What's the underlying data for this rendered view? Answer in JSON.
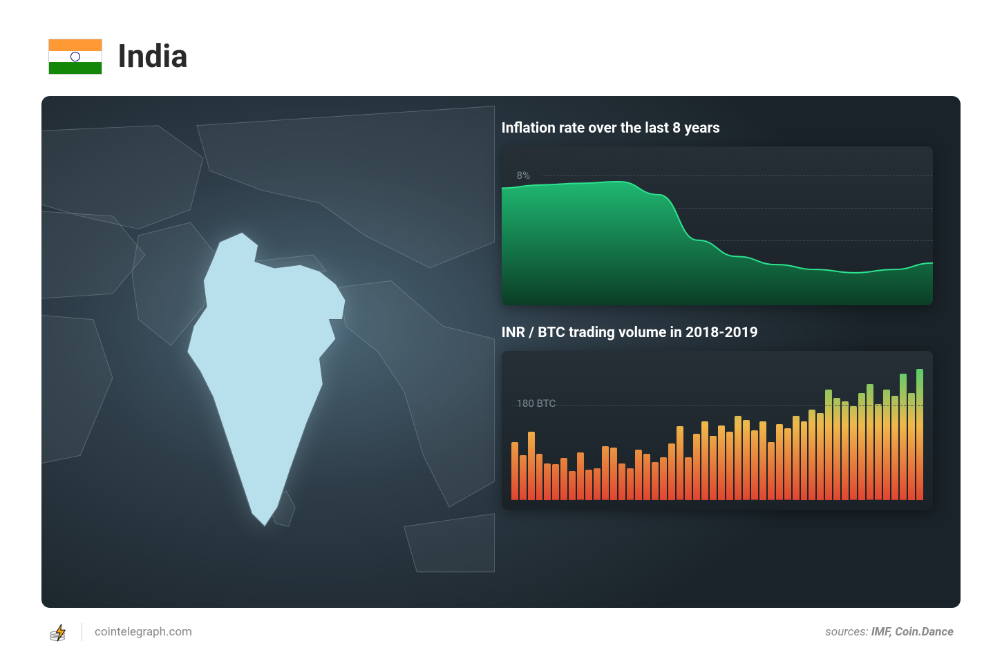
{
  "header": {
    "country": "India",
    "flag": {
      "stripes": [
        "#ff9933",
        "#ffffff",
        "#138808"
      ],
      "chakra_color": "#000080"
    }
  },
  "panel": {
    "background_gradient": [
      "#4a6575",
      "#2e3d48",
      "#1a2329"
    ],
    "border_radius": 12
  },
  "inflation_chart": {
    "title": "Inflation rate over the last 8 years",
    "type": "area",
    "background": [
      "#262f36",
      "#1a2228"
    ],
    "grid_color": "#3d4a54",
    "label_color": "#7a8b95",
    "label_fontsize": 15,
    "y_ticks": [
      2,
      4,
      6,
      8
    ],
    "y_tick_format": "%",
    "ylim": [
      0,
      9
    ],
    "x_count": 8,
    "values": [
      7.2,
      7.4,
      7.5,
      7.6,
      6.8,
      4.0,
      3.0,
      2.5,
      2.2,
      2.0,
      2.2,
      2.6
    ],
    "fill_gradient_top": "#1fb871",
    "fill_gradient_bottom": "#0b3d26",
    "stroke_color": "#2de38f",
    "stroke_width": 2
  },
  "volume_chart": {
    "title": "INR / BTC trading volume in 2018-2019",
    "type": "bar",
    "background": [
      "#262f36",
      "#1a2228"
    ],
    "grid_color": "#3d4a54",
    "label_color": "#7a8b95",
    "label_fontsize": 15,
    "reference_label": "180 BTC",
    "reference_value": 180,
    "ylim": [
      0,
      260
    ],
    "bar_gradient_top": "#4bcf70",
    "bar_gradient_mid": "#f0b84a",
    "bar_gradient_bottom": "#e0452f",
    "values": [
      110,
      85,
      130,
      88,
      70,
      68,
      80,
      55,
      90,
      58,
      60,
      102,
      100,
      70,
      60,
      96,
      88,
      72,
      82,
      108,
      140,
      82,
      126,
      150,
      122,
      142,
      130,
      160,
      152,
      132,
      150,
      110,
      144,
      136,
      160,
      150,
      172,
      166,
      210,
      195,
      188,
      178,
      204,
      220,
      182,
      210,
      198,
      240,
      204,
      250
    ]
  },
  "footer": {
    "site": "cointelegraph.com",
    "sources_prefix": "sources:",
    "sources": "IMF, Coin.Dance",
    "logo_colors": {
      "ring": "#888888",
      "bolt": "#f7a81b"
    }
  },
  "map": {
    "highlight_fill": "#b8e0ec",
    "highlight_stroke": "#556b78",
    "background_country_fill": "rgba(120,140,150,0.12)",
    "background_country_stroke": "rgba(170,185,195,0.35)"
  }
}
